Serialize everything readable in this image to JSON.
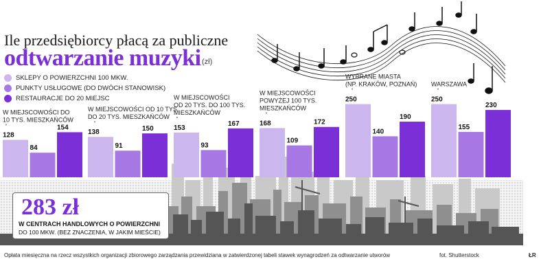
{
  "header": {
    "title_line1": "Ile przedsiębiorcy płacą za publiczne",
    "title_line2": "odtwarzanie muzyki",
    "unit": "(zł)"
  },
  "legend": [
    {
      "label": "SKLEPY O POWIERZCHNI 100 MKW.",
      "color": "#cbb6ee"
    },
    {
      "label": "PUNKTY USŁUGOWE (DO DWÓCH STANOWISK)",
      "color": "#a778e3"
    },
    {
      "label": "RESTAURACJE DO 20 MIEJSC",
      "color": "#7b2fd6"
    }
  ],
  "chart_data": {
    "type": "bar",
    "categories": [
      "W MIEJSCOWOŚCI DO 10 TYS. MIESZKAŃCÓW",
      "W MIEJSCOWOŚCI OD 10 TYS. DO 20 TYS. MIESZKAŃCÓW",
      "W MIEJSCOWOŚCI OD 20 TYS. DO 100 TYS. MIESZKAŃCÓW",
      "W MIEJSCOWOŚCI POWYŻEJ 100 TYS. MIESZKAŃCÓW",
      "WYBRANE MIASTA (NP. KRAKÓW, POZNAŃ)",
      "WARSZAWA"
    ],
    "category_lines": [
      [
        "W MIEJSCOWOŚCI DO",
        "10 TYS. MIESZKAŃCÓW"
      ],
      [
        "W MIEJSCOWOŚCI OD 10 TYS.",
        "DO 20 TYS. MIESZKAŃCÓW"
      ],
      [
        "W MIEJSCOWOŚCI",
        "OD 20 TYS. DO 100 TYS.",
        "MIESZKAŃCÓW"
      ],
      [
        "W MIEJSCOWOŚCI",
        "POWYŻEJ 100 TYS.",
        "MIESZKAŃCÓW"
      ],
      [
        "WYBRANE MIASTA",
        "(NP. KRAKÓW, POZNAŃ)"
      ],
      [
        "WARSZAWA"
      ]
    ],
    "series": [
      {
        "name": "SKLEPY O POWIERZCHNI 100 MKW.",
        "values": [
          128,
          138,
          153,
          168,
          250,
          250
        ]
      },
      {
        "name": "PUNKTY USŁUGOWE (DO DWÓCH STANOWISK)",
        "values": [
          84,
          91,
          93,
          109,
          140,
          155
        ]
      },
      {
        "name": "RESTAURACJE DO 20 MIEJSC",
        "values": [
          154,
          150,
          167,
          172,
          190,
          230
        ]
      }
    ],
    "grid": false
  },
  "stat": {
    "value": "283 zł",
    "line1": "W CENTRACH HANDLOWYCH O POWIERZCHNI",
    "line2": "DO 100 MKW. (BEZ ZNACZENIA, W JAKIM MIEŚCIE)"
  },
  "footer": {
    "note": "Opłata miesięczna na rzecz wszystkich organizacji zbiorowego zarządzania przewidziana w zatwierdzonej tabeli stawek wynagrodzeń za odtwarzanie utworów",
    "photo_credit": "fot. Shutterstock",
    "logo": "ŁR"
  },
  "colors": {
    "accent": "#7b2fd6",
    "mid": "#a778e3",
    "light": "#cbb6ee",
    "skyline": "#555555"
  }
}
